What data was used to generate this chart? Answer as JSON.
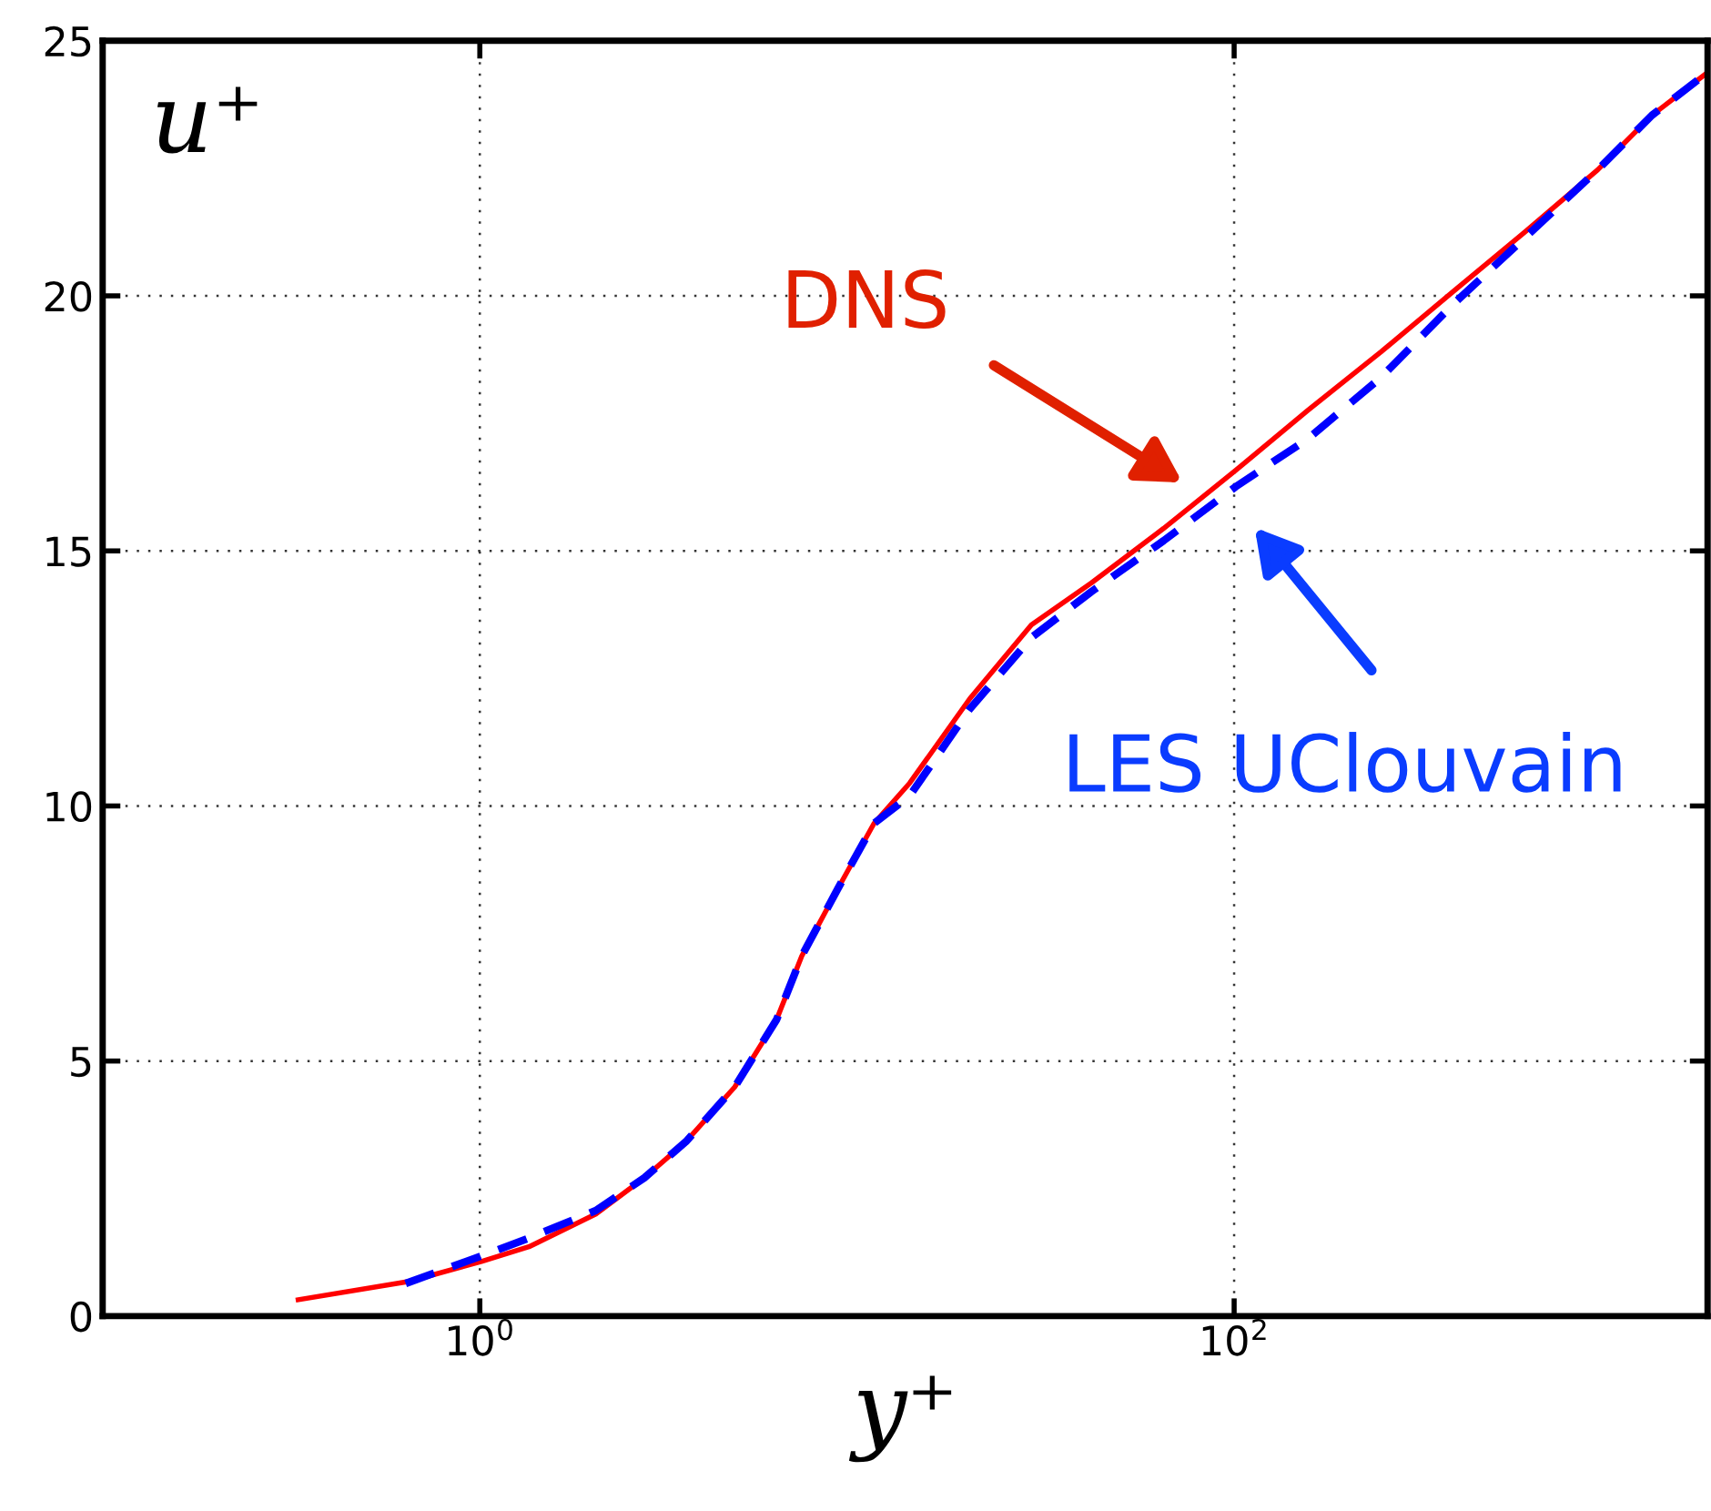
{
  "chart_data": {
    "type": "line",
    "xlabel": "y⁺",
    "ylabel": "u⁺",
    "log": "x",
    "xlim": [
      0.1,
      1800
    ],
    "xticks": [
      {
        "value": 1,
        "label": "10$^{0}$"
      },
      {
        "value": 100,
        "label": "10$^{2}$"
      }
    ],
    "ylim": [
      0,
      25
    ],
    "yticks": [
      0,
      5,
      10,
      15,
      20,
      25
    ],
    "grid": true,
    "series": [
      {
        "name": "DNS",
        "color": "#ff0000",
        "line_style": "solid",
        "x": [
          0.33,
          0.65,
          1.01,
          1.35,
          2.03,
          2.73,
          3.52,
          4.74,
          6.12,
          7.14,
          8.9,
          11.1,
          13.8,
          19.9,
          29.0,
          41.8,
          65.0,
          101,
          157,
          245,
          380,
          592,
          920,
          1282,
          1786
        ],
        "values": [
          0.32,
          0.68,
          1.07,
          1.36,
          2.0,
          2.71,
          3.42,
          4.49,
          5.81,
          7.06,
          8.38,
          9.66,
          10.45,
          12.1,
          13.55,
          14.37,
          15.44,
          16.58,
          17.76,
          18.9,
          20.08,
          21.26,
          22.47,
          23.54,
          24.36
        ]
      },
      {
        "name": "LES UClouvain",
        "color": "#0000ff",
        "line_style": "dashed",
        "x": [
          0.636,
          1.01,
          1.35,
          2.03,
          2.73,
          3.52,
          4.74,
          6.12,
          7.14,
          8.9,
          11.1,
          13.8,
          19.9,
          29.0,
          41.8,
          65.0,
          101,
          157,
          245,
          380,
          592,
          920,
          1282,
          1786
        ],
        "values": [
          0.64,
          1.18,
          1.53,
          2.07,
          2.71,
          3.42,
          4.49,
          5.81,
          7.06,
          8.38,
          9.66,
          10.2,
          11.9,
          13.3,
          14.2,
          15.2,
          16.26,
          17.2,
          18.4,
          19.83,
          21.15,
          22.47,
          23.54,
          24.36
        ]
      }
    ]
  }
}
